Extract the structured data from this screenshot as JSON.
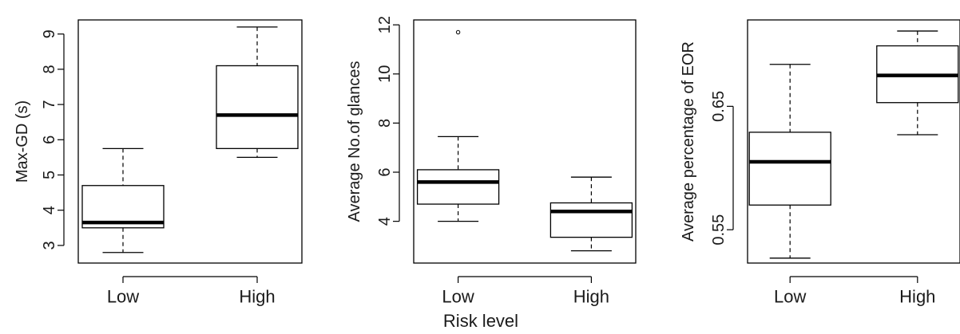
{
  "chart_data": [
    {
      "type": "boxplot",
      "ylabel": "Max-GD (s)",
      "ylim": [
        2.5,
        9.4
      ],
      "yticks": [
        3,
        4,
        5,
        6,
        7,
        8,
        9
      ],
      "categories": [
        "Low",
        "High"
      ],
      "boxes": [
        {
          "min": 2.8,
          "q1": 3.5,
          "median": 3.65,
          "q3": 4.7,
          "max": 5.75,
          "outliers": []
        },
        {
          "min": 5.5,
          "q1": 5.75,
          "median": 6.7,
          "q3": 8.1,
          "max": 9.2,
          "outliers": []
        }
      ]
    },
    {
      "type": "boxplot",
      "ylabel": "Average No.of glances",
      "ylim": [
        2.3,
        12.2
      ],
      "yticks": [
        4,
        6,
        8,
        10,
        12
      ],
      "categories": [
        "Low",
        "High"
      ],
      "boxes": [
        {
          "min": 4.0,
          "q1": 4.7,
          "median": 5.6,
          "q3": 6.1,
          "max": 7.45,
          "outliers": [
            11.7
          ]
        },
        {
          "min": 2.8,
          "q1": 3.35,
          "median": 4.4,
          "q3": 4.75,
          "max": 5.8,
          "outliers": []
        }
      ]
    },
    {
      "type": "boxplot",
      "ylabel": "Average percentage of EOR",
      "ylim": [
        0.523,
        0.72
      ],
      "yticks": [
        0.55,
        0.65
      ],
      "categories": [
        "Low",
        "High"
      ],
      "boxes": [
        {
          "min": 0.527,
          "q1": 0.57,
          "median": 0.605,
          "q3": 0.629,
          "max": 0.684,
          "outliers": []
        },
        {
          "min": 0.627,
          "q1": 0.653,
          "median": 0.675,
          "q3": 0.699,
          "max": 0.711,
          "outliers": []
        }
      ]
    }
  ],
  "footer": {
    "xlabel": "Risk level"
  }
}
